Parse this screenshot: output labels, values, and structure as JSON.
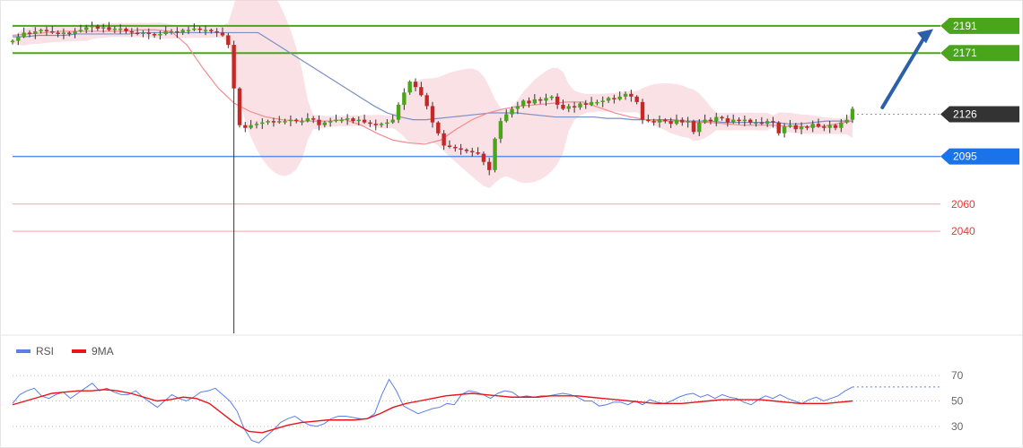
{
  "chart_data": [
    {
      "type": "candlestick",
      "title": "",
      "ylim": [
        1965,
        2210
      ],
      "levels": [
        {
          "name": "r2",
          "value": 2191,
          "label": "2191",
          "color": "#4aa51b",
          "style": "green-tag"
        },
        {
          "name": "r1",
          "value": 2171,
          "label": "2171",
          "color": "#4aa51b",
          "style": "green-tag"
        },
        {
          "name": "last",
          "value": 2126,
          "label": "2126",
          "color": "#333333",
          "style": "dark-tag"
        },
        {
          "name": "pivot",
          "value": 2095,
          "label": "2095",
          "color": "#1a73e8",
          "style": "blue-tag"
        },
        {
          "name": "s1",
          "value": 2060,
          "label": "2060",
          "color": "#e53935",
          "style": "red-text"
        },
        {
          "name": "s2",
          "value": 2040,
          "label": "2040",
          "color": "#e53935",
          "style": "red-text"
        }
      ],
      "arrow": {
        "from": [
          152,
          2131
        ],
        "to": [
          170,
          2190
        ],
        "color": "#2b5fa8"
      },
      "series": [
        {
          "name": "price",
          "closes": [
            2180,
            2183,
            2186,
            2185,
            2187,
            2188,
            2187,
            2186,
            2185,
            2186,
            2185,
            2187,
            2188,
            2190,
            2191,
            2189,
            2190,
            2188,
            2189,
            2189,
            2187,
            2186,
            2185,
            2186,
            2185,
            2184,
            2185,
            2187,
            2187,
            2186,
            2188,
            2188,
            2189,
            2188,
            2188,
            2187,
            2186,
            2184,
            2177,
            2145,
            2118,
            2116,
            2118,
            2119,
            2120,
            2121,
            2120,
            2121,
            2121,
            2122,
            2121,
            2121,
            2123,
            2122,
            2118,
            2120,
            2121,
            2122,
            2122,
            2123,
            2121,
            2122,
            2120,
            2119,
            2118,
            2119,
            2120,
            2122,
            2133,
            2142,
            2150,
            2146,
            2140,
            2132,
            2120,
            2112,
            2103,
            2102,
            2101,
            2100,
            2099,
            2098,
            2097,
            2091,
            2085,
            2108,
            2121,
            2126,
            2130,
            2132,
            2136,
            2134,
            2137,
            2136,
            2138,
            2139,
            2133,
            2130,
            2132,
            2131,
            2134,
            2133,
            2135,
            2135,
            2136,
            2138,
            2137,
            2139,
            2141,
            2139,
            2135,
            2122,
            2121,
            2120,
            2122,
            2121,
            2119,
            2122,
            2120,
            2121,
            2113,
            2120,
            2122,
            2121,
            2124,
            2123,
            2120,
            2122,
            2121,
            2122,
            2120,
            2120,
            2119,
            2121,
            2120,
            2112,
            2117,
            2118,
            2115,
            2117,
            2116,
            2119,
            2117,
            2116,
            2118,
            2116,
            2120,
            2122,
            2130
          ]
        },
        {
          "name": "ma-blue",
          "values": [
            2183,
            2183,
            2184,
            2184,
            2184,
            2185,
            2185,
            2185,
            2185,
            2185,
            2186,
            2186,
            2186,
            2186,
            2186,
            2186,
            2186,
            2186,
            2186,
            2186,
            2180,
            2174,
            2168,
            2162,
            2156,
            2150,
            2144,
            2138,
            2132,
            2127,
            2124,
            2122,
            2122,
            2123,
            2124,
            2125,
            2126,
            2127,
            2127,
            2127,
            2126,
            2125,
            2124,
            2124,
            2124,
            2124,
            2123,
            2123,
            2122,
            2122,
            2122,
            2122,
            2121,
            2121,
            2121,
            2120,
            2120,
            2120,
            2120,
            2120,
            2119,
            2119,
            2120,
            2121,
            2121,
            2121
          ]
        },
        {
          "name": "ma-red",
          "values": [
            2184,
            2185,
            2186,
            2187,
            2187,
            2187,
            2187,
            2187,
            2188,
            2188,
            2187,
            2177,
            2160,
            2145,
            2134,
            2128,
            2124,
            2122,
            2121,
            2121,
            2121,
            2122,
            2118,
            2112,
            2107,
            2105,
            2104,
            2107,
            2115,
            2122,
            2127,
            2130,
            2132,
            2133,
            2134,
            2135,
            2135,
            2131,
            2127,
            2124,
            2122,
            2121,
            2121,
            2120,
            2120,
            2119,
            2118,
            2118,
            2118,
            2117,
            2117,
            2117,
            2119,
            2121
          ]
        }
      ]
    },
    {
      "type": "line",
      "title": "",
      "ylim": [
        20,
        80
      ],
      "ticks": [
        70,
        50,
        30
      ],
      "series": [
        {
          "name": "RSI",
          "color": "#5b7fe6",
          "values": [
            48,
            55,
            58,
            60,
            54,
            52,
            55,
            57,
            52,
            56,
            60,
            64,
            58,
            60,
            57,
            55,
            55,
            58,
            53,
            49,
            45,
            50,
            55,
            52,
            50,
            53,
            57,
            58,
            60,
            55,
            50,
            42,
            28,
            19,
            17,
            22,
            27,
            33,
            36,
            38,
            34,
            31,
            30,
            32,
            36,
            38,
            38,
            37,
            36,
            36,
            40,
            55,
            67,
            58,
            46,
            43,
            40,
            42,
            44,
            45,
            48,
            47,
            55,
            58,
            57,
            55,
            52,
            56,
            58,
            57,
            53,
            54,
            53,
            54,
            54,
            55,
            56,
            55,
            53,
            50,
            50,
            46,
            47,
            49,
            49,
            47,
            50,
            47,
            51,
            49,
            48,
            50,
            53,
            55,
            56,
            53,
            55,
            52,
            55,
            53,
            52,
            49,
            47,
            51,
            54,
            52,
            55,
            52,
            50,
            48,
            51,
            53,
            50,
            52,
            54,
            58,
            61
          ]
        },
        {
          "name": "9MA",
          "color": "#e8141c",
          "values": [
            47,
            50,
            53,
            56,
            57,
            58,
            58,
            59,
            58,
            56,
            53,
            50,
            51,
            53,
            52,
            48,
            40,
            32,
            26,
            25,
            28,
            31,
            33,
            34,
            35,
            35,
            35,
            36,
            40,
            45,
            48,
            50,
            52,
            54,
            55,
            56,
            55,
            54,
            53,
            53,
            53,
            54,
            54,
            54,
            53,
            52,
            51,
            50,
            49,
            48,
            48,
            48,
            49,
            50,
            51,
            51,
            51,
            51,
            50,
            49,
            48,
            48,
            48,
            49,
            50
          ]
        }
      ],
      "legend": [
        {
          "name": "RSI",
          "color": "#5b7fe6"
        },
        {
          "name": "9MA",
          "color": "#e8141c"
        }
      ]
    }
  ]
}
